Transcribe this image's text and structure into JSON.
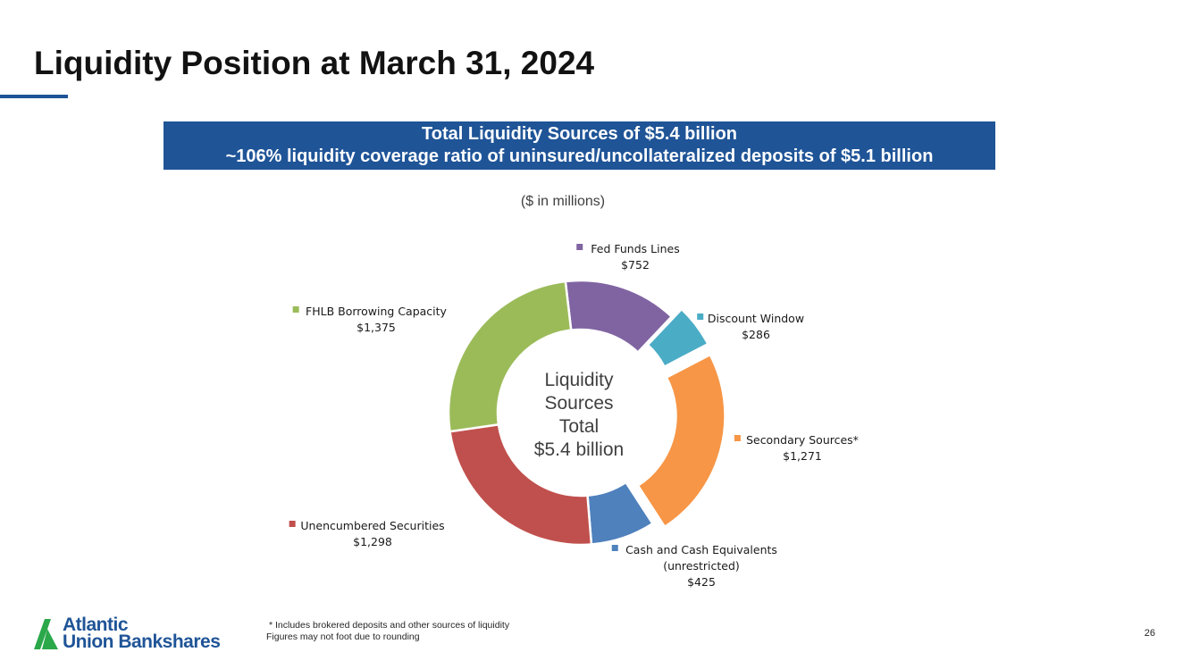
{
  "slide": {
    "title": "Liquidity Position at March 31, 2024",
    "banner_line1": "Total Liquidity Sources of $5.4 billion",
    "banner_line2": "~106% liquidity coverage ratio of uninsured/uncollateralized deposits of $5.1 billion",
    "units": "($ in millions)",
    "footnote_line1": "* Includes brokered deposits and other sources of liquidity",
    "footnote_line2": "Figures may not foot due to rounding",
    "page_number": "26",
    "logo_line1": "Atlantic",
    "logo_line2": "Union Bankshares"
  },
  "colors": {
    "brand_blue": "#1f5497",
    "logo_green": "#2aa84a"
  },
  "chart_data": {
    "type": "donut",
    "center_label": [
      "Liquidity",
      "Sources",
      "Total",
      "$5.4 billion"
    ],
    "slices": [
      {
        "name": "Fed Funds Lines",
        "label_lines": [
          "Fed Funds Lines"
        ],
        "value": 752,
        "value_label": "$752",
        "color": "#8064a2",
        "exploded": false
      },
      {
        "name": "Discount Window",
        "label_lines": [
          "Discount Window"
        ],
        "value": 286,
        "value_label": "$286",
        "color": "#4bacc6",
        "exploded": true
      },
      {
        "name": "Secondary Sources*",
        "label_lines": [
          "Secondary Sources*"
        ],
        "value": 1271,
        "value_label": "$1,271",
        "color": "#f79646",
        "exploded": true
      },
      {
        "name": "Cash and Cash Equivalents (unrestricted)",
        "label_lines": [
          "Cash and Cash Equivalents",
          "(unrestricted)"
        ],
        "value": 425,
        "value_label": "$425",
        "color": "#4f81bd",
        "exploded": false
      },
      {
        "name": "Unencumbered Securities",
        "label_lines": [
          "Unencumbered Securities"
        ],
        "value": 1298,
        "value_label": "$1,298",
        "color": "#c0504d",
        "exploded": false
      },
      {
        "name": "FHLB Borrowing Capacity",
        "label_lines": [
          "FHLB Borrowing Capacity"
        ],
        "value": 1375,
        "value_label": "$1,375",
        "color": "#9bbb59",
        "exploded": false
      }
    ]
  }
}
